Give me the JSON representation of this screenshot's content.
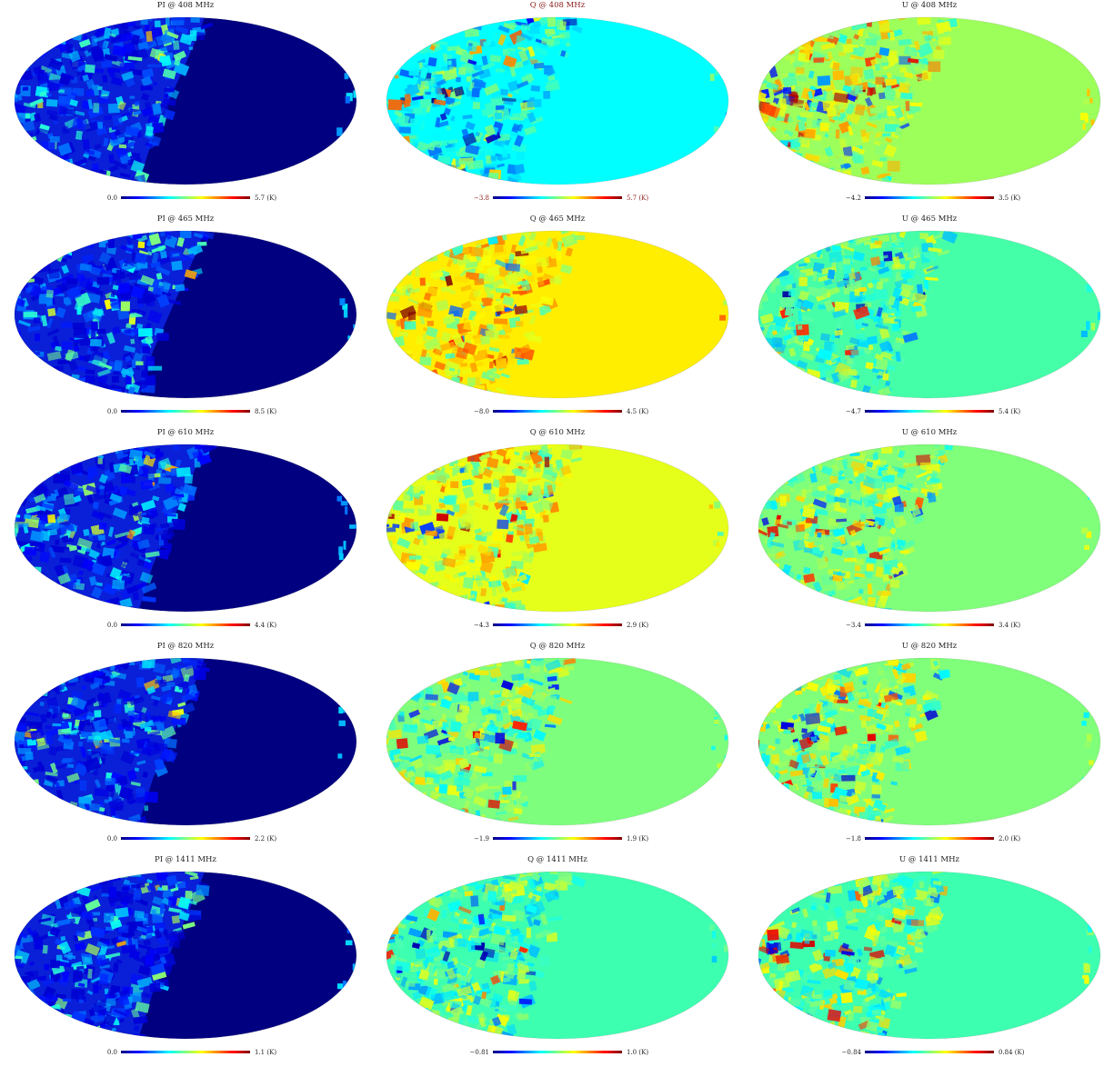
{
  "panels": [
    {
      "title": "PI @ 408 MHz",
      "min": "0.0",
      "max": "5.7 (K)",
      "kind": "PI",
      "row": 0,
      "col": 0
    },
    {
      "title": "Q @ 408 MHz",
      "min": "−3.8",
      "max": "5.7 (K)",
      "kind": "Q",
      "row": 0,
      "col": 1,
      "highlight": true
    },
    {
      "title": "U @ 408 MHz",
      "min": "−4.2",
      "max": "3.5 (K)",
      "kind": "U",
      "row": 0,
      "col": 2
    },
    {
      "title": "PI @ 465 MHz",
      "min": "0.0",
      "max": "8.5 (K)",
      "kind": "PI",
      "row": 1,
      "col": 0
    },
    {
      "title": "Q @ 465 MHz",
      "min": "−8.0",
      "max": "4.5 (K)",
      "kind": "Q",
      "row": 1,
      "col": 1
    },
    {
      "title": "U @ 465 MHz",
      "min": "−4.7",
      "max": "5.4 (K)",
      "kind": "U",
      "row": 1,
      "col": 2
    },
    {
      "title": "PI @ 610 MHz",
      "min": "0.0",
      "max": "4.4 (K)",
      "kind": "PI",
      "row": 2,
      "col": 0
    },
    {
      "title": "Q @ 610 MHz",
      "min": "−4.3",
      "max": "2.9 (K)",
      "kind": "Q",
      "row": 2,
      "col": 1
    },
    {
      "title": "U @ 610 MHz",
      "min": "−3.4",
      "max": "3.4 (K)",
      "kind": "U",
      "row": 2,
      "col": 2
    },
    {
      "title": "PI @ 820 MHz",
      "min": "0.0",
      "max": "2.2 (K)",
      "kind": "PI",
      "row": 3,
      "col": 0
    },
    {
      "title": "Q @ 820 MHz",
      "min": "−1.9",
      "max": "1.9 (K)",
      "kind": "Q",
      "row": 3,
      "col": 1
    },
    {
      "title": "U @ 820 MHz",
      "min": "−1.8",
      "max": "2.0 (K)",
      "kind": "U",
      "row": 3,
      "col": 2
    },
    {
      "title": "PI @ 1411 MHz",
      "min": "0.0",
      "max": "1.1 (K)",
      "kind": "PI",
      "row": 4,
      "col": 0
    },
    {
      "title": "Q @ 1411 MHz",
      "min": "−0.81",
      "max": "1.0 (K)",
      "kind": "Q",
      "row": 4,
      "col": 1
    },
    {
      "title": "U @ 1411 MHz",
      "min": "−0.84",
      "max": "0.84 (K)",
      "kind": "U",
      "row": 4,
      "col": 2
    }
  ],
  "colors": {
    "PI_empty": "#000080",
    "PI_base": "#0a1fd8",
    "Q_empty": [
      "#00ffff",
      "#ffee00",
      "#e6ff1a",
      "#7dff7d",
      "#3dffb0"
    ],
    "U_empty": [
      "#9dff5a",
      "#45ffa8",
      "#80ff7a",
      "#80ff7a",
      "#3dffb0"
    ],
    "colormap": [
      "#00007f",
      "#0000ff",
      "#007fff",
      "#00ffff",
      "#7fff7f",
      "#ffff00",
      "#ff7f00",
      "#ff0000",
      "#7f0000"
    ]
  }
}
